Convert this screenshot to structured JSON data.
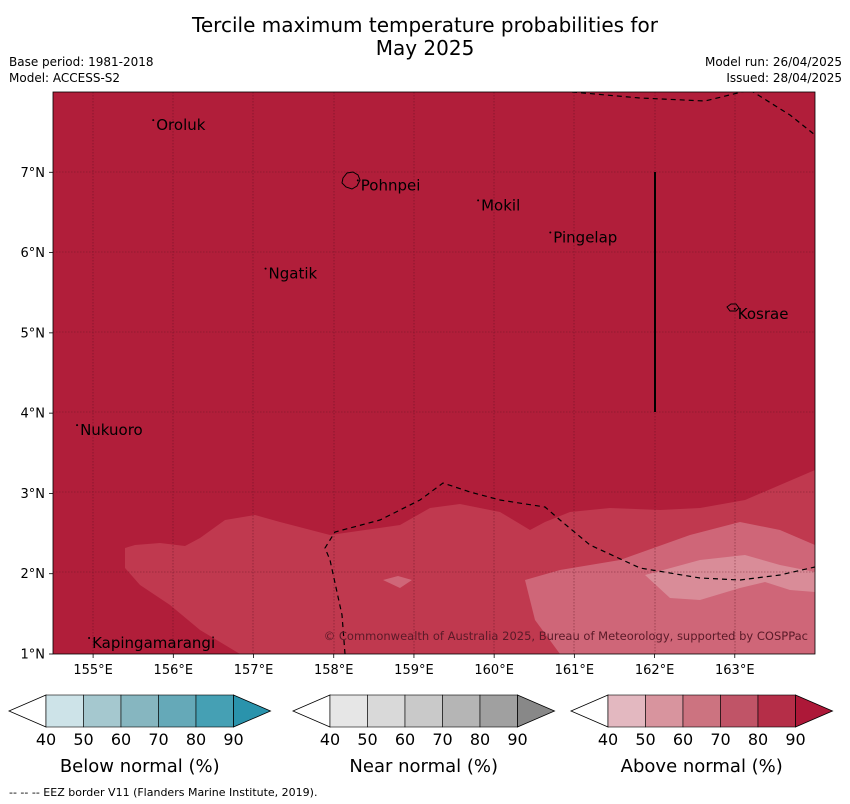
{
  "title": {
    "line1": "Tercile maximum temperature probabilities for",
    "line2": "May 2025"
  },
  "meta": {
    "base_period": "Base period: 1981-2018",
    "model": "Model: ACCESS-S2",
    "model_run": "Model run: 26/04/2025",
    "issued": "Issued: 28/04/2025"
  },
  "map": {
    "lat_labels": [
      "1°N",
      "2°N",
      "3°N",
      "4°N",
      "5°N",
      "6°N",
      "7°N"
    ],
    "lon_labels": [
      "155°E",
      "156°E",
      "157°E",
      "158°E",
      "159°E",
      "160°E",
      "161°E",
      "162°E",
      "163°E"
    ],
    "lat_values": [
      1,
      2,
      3,
      4,
      5,
      6,
      7
    ],
    "lon_values": [
      155,
      156,
      157,
      158,
      159,
      160,
      161,
      162,
      163
    ],
    "places": [
      {
        "name": "Oroluk",
        "lon": 155.75,
        "lat": 7.65
      },
      {
        "name": "Pohnpei",
        "lon": 158.3,
        "lat": 6.9
      },
      {
        "name": "Mokil",
        "lon": 159.8,
        "lat": 6.65
      },
      {
        "name": "Pingelap",
        "lon": 160.7,
        "lat": 6.25
      },
      {
        "name": "Ngatik",
        "lon": 157.15,
        "lat": 5.8
      },
      {
        "name": "Kosrae",
        "lon": 163.0,
        "lat": 5.3
      },
      {
        "name": "Nukuoro",
        "lon": 154.8,
        "lat": 3.85
      },
      {
        "name": "Kapingamarangi",
        "lon": 154.95,
        "lat": 1.2
      }
    ],
    "copyright": "© Commonwealth of Australia 2025, Bureau of Meteorology, supported by COSPPac",
    "colors": {
      "above_80": "#b11e3a",
      "above_70": "#c0394f",
      "above_60": "#cf6678",
      "land": "#b11e3a"
    }
  },
  "legends": [
    {
      "label": "Below normal (%)",
      "ticks": [
        "40",
        "50",
        "60",
        "70",
        "80",
        "90"
      ],
      "colors": [
        "#ffffff",
        "#cde3e8",
        "#a5c8cf",
        "#86b6c0",
        "#65a9b8",
        "#45a0b4",
        "#2a93ac"
      ]
    },
    {
      "label": "Near normal (%)",
      "ticks": [
        "40",
        "50",
        "60",
        "70",
        "80",
        "90"
      ],
      "colors": [
        "#ffffff",
        "#e6e6e6",
        "#d9d9d9",
        "#c9c9c9",
        "#b5b5b5",
        "#a0a0a0",
        "#888888"
      ]
    },
    {
      "label": "Above normal (%)",
      "ticks": [
        "40",
        "50",
        "60",
        "70",
        "80",
        "90"
      ],
      "colors": [
        "#ffffff",
        "#e3b8c0",
        "#d8949e",
        "#cc7380",
        "#c05467",
        "#b52e48",
        "#ad1838"
      ]
    }
  ],
  "footer": "--  --  -- EEZ border V11 (Flanders Marine Institute, 2019)."
}
